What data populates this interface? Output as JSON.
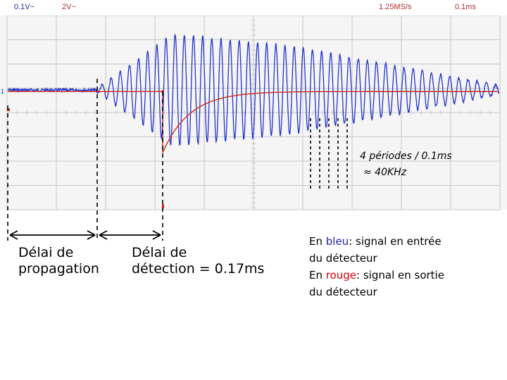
{
  "header": {
    "ch1_scale": "0.1V~",
    "ch2_scale": "2V~",
    "sample_rate": "1.25MS/s",
    "time_base": "0.1ms",
    "ch1_marker": "1"
  },
  "colors": {
    "ch1_trace": "#2233cc",
    "ch2_trace": "#cc2a1a",
    "grid": "#c8c8c8",
    "screen_bg": "#f5f5f5"
  },
  "annotations": {
    "propagation_line1": "Délai de",
    "propagation_line2": "propagation",
    "detection_line1": "Délai de",
    "detection_line2": "détection = 0.17ms",
    "periods_line1": "4 périodes / 0.1ms",
    "periods_line2": "≈ 40KHz"
  },
  "legend": {
    "line1_prefix": "En ",
    "blue_word": "bleu",
    "line1_suffix": ": signal en entrée",
    "line2": "du détecteur",
    "line3_prefix": "En ",
    "red_word": "rouge",
    "line3_suffix": ": signal en sortie",
    "line4": "du détecteur"
  }
}
